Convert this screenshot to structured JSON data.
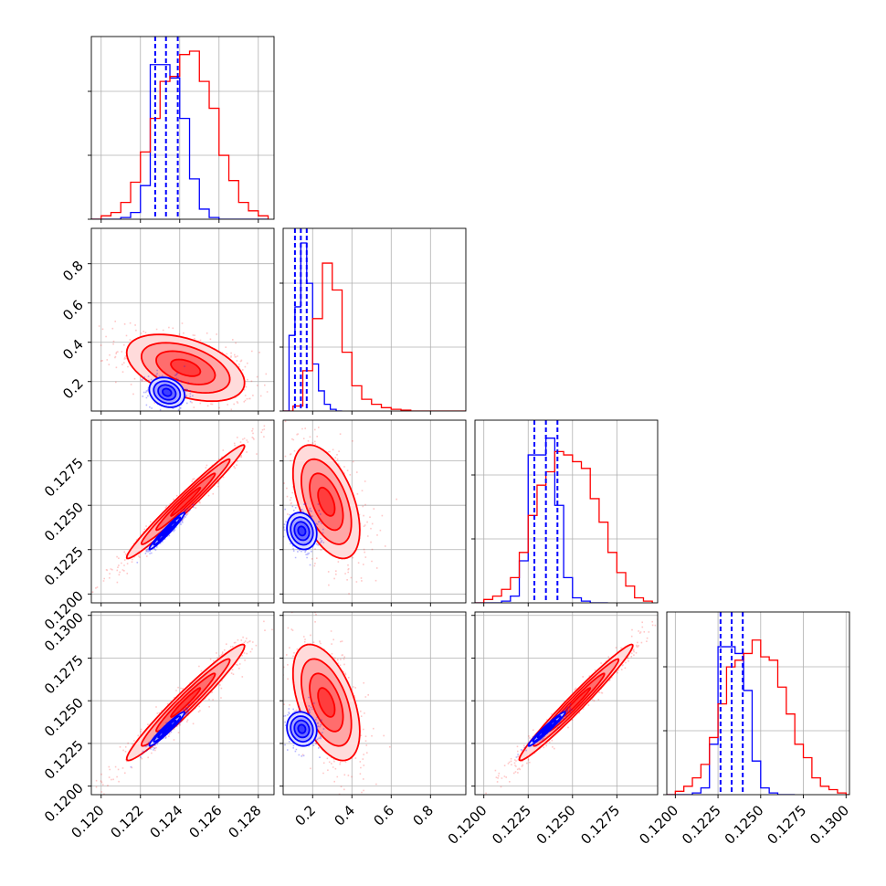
{
  "chart_data": {
    "type": "corner",
    "title": "",
    "grid": true,
    "series": [
      {
        "color": "#0000ff"
      },
      {
        "color": "#ff0000"
      }
    ],
    "parameters": [
      {
        "range": [
          0.1195,
          0.1288
        ],
        "ticks": [
          0.12,
          0.122,
          0.124,
          0.126,
          0.128
        ],
        "tick_labels": [
          "0.120",
          "0.122",
          "0.124",
          "0.126",
          "0.128"
        ]
      },
      {
        "range": [
          0.05,
          0.98
        ],
        "ticks": [
          0.2,
          0.4,
          0.6,
          0.8
        ],
        "tick_labels": [
          "0.2",
          "0.4",
          "0.6",
          "0.8"
        ]
      },
      {
        "range": [
          0.1195,
          0.1298
        ],
        "ticks": [
          0.12,
          0.1225,
          0.125,
          0.1275
        ],
        "tick_labels": [
          "0.1200",
          "0.1225",
          "0.1250",
          "0.1275"
        ]
      },
      {
        "range": [
          0.1195,
          0.1302
        ],
        "ticks": [
          0.12,
          0.1225,
          0.125,
          0.1275,
          0.13
        ],
        "tick_labels": [
          "0.1200",
          "0.1225",
          "0.1250",
          "0.1275",
          "0.1300"
        ]
      }
    ],
    "histograms": [
      {
        "blue": {
          "edges": [
            0.1195,
            0.12,
            0.1205,
            0.121,
            0.1215,
            0.122,
            0.1225,
            0.123,
            0.1235,
            0.124,
            0.1245,
            0.125,
            0.1255,
            0.126,
            0.1265,
            0.127,
            0.1275,
            0.128,
            0.1285
          ],
          "counts": [
            0,
            0,
            0,
            0.01,
            0.04,
            0.2,
            0.92,
            0.92,
            0.84,
            0.6,
            0.24,
            0.06,
            0.01,
            0,
            0,
            0,
            0,
            0
          ]
        },
        "red": {
          "edges": [
            0.1195,
            0.12,
            0.1205,
            0.121,
            0.1215,
            0.122,
            0.1225,
            0.123,
            0.1235,
            0.124,
            0.1245,
            0.125,
            0.1255,
            0.126,
            0.1265,
            0.127,
            0.1275,
            0.128,
            0.1285
          ],
          "counts": [
            0,
            0.02,
            0.04,
            0.1,
            0.22,
            0.4,
            0.6,
            0.82,
            0.85,
            0.98,
            1.0,
            0.82,
            0.66,
            0.38,
            0.23,
            0.1,
            0.05,
            0.02
          ]
        },
        "quantiles": [
          0.12275,
          0.1233,
          0.1239
        ]
      },
      {
        "blue": {
          "edges": [
            0.05,
            0.08,
            0.11,
            0.14,
            0.17,
            0.2,
            0.23,
            0.26,
            0.29,
            0.32,
            0.35
          ],
          "counts": [
            0,
            0.45,
            0.62,
            1.0,
            0.76,
            0.28,
            0.12,
            0.04,
            0.01,
            0
          ]
        },
        "red": {
          "edges": [
            0.05,
            0.1,
            0.15,
            0.2,
            0.25,
            0.3,
            0.35,
            0.4,
            0.45,
            0.5,
            0.55,
            0.6,
            0.65,
            0.7,
            0.75,
            0.8,
            0.85,
            0.9,
            0.95,
            0.98
          ],
          "counts": [
            0,
            0.03,
            0.24,
            0.55,
            0.88,
            0.72,
            0.35,
            0.15,
            0.07,
            0.04,
            0.02,
            0.01,
            0.005,
            0,
            0,
            0,
            0,
            0,
            0
          ]
        },
        "quantiles": [
          0.11,
          0.14,
          0.17
        ]
      },
      {
        "blue": {
          "edges": [
            0.1195,
            0.12,
            0.1205,
            0.121,
            0.1215,
            0.122,
            0.1225,
            0.123,
            0.1235,
            0.124,
            0.1245,
            0.125,
            0.1255,
            0.126,
            0.1265,
            0.127
          ],
          "counts": [
            0,
            0,
            0,
            0.01,
            0.04,
            0.25,
            0.88,
            0.88,
            0.98,
            0.58,
            0.15,
            0.03,
            0.01,
            0,
            0
          ]
        },
        "red": {
          "edges": [
            0.1195,
            0.12,
            0.1205,
            0.121,
            0.1215,
            0.122,
            0.1225,
            0.123,
            0.1235,
            0.124,
            0.1245,
            0.125,
            0.1255,
            0.126,
            0.1265,
            0.127,
            0.1275,
            0.128,
            0.1285,
            0.129,
            0.1295
          ],
          "counts": [
            0,
            0.02,
            0.04,
            0.08,
            0.15,
            0.3,
            0.52,
            0.7,
            0.78,
            0.9,
            0.88,
            0.84,
            0.8,
            0.62,
            0.48,
            0.3,
            0.18,
            0.1,
            0.03,
            0.01
          ]
        },
        "quantiles": [
          0.12285,
          0.1235,
          0.12415
        ]
      },
      {
        "blue": {
          "edges": [
            0.1195,
            0.12,
            0.1205,
            0.121,
            0.1215,
            0.122,
            0.1225,
            0.123,
            0.1235,
            0.124,
            0.1245,
            0.125,
            0.1255,
            0.126,
            0.1265,
            0.127
          ],
          "counts": [
            0,
            0,
            0,
            0.01,
            0.04,
            0.3,
            0.88,
            0.88,
            0.84,
            0.62,
            0.2,
            0.04,
            0.01,
            0,
            0
          ]
        },
        "red": {
          "edges": [
            0.1195,
            0.12,
            0.1205,
            0.121,
            0.1215,
            0.122,
            0.1225,
            0.123,
            0.1235,
            0.124,
            0.1245,
            0.125,
            0.1255,
            0.126,
            0.1265,
            0.127,
            0.1275,
            0.128,
            0.1285,
            0.129,
            0.1295,
            0.13,
            0.1302
          ],
          "counts": [
            0,
            0.02,
            0.05,
            0.1,
            0.18,
            0.34,
            0.54,
            0.76,
            0.8,
            0.84,
            0.92,
            0.82,
            0.8,
            0.64,
            0.48,
            0.3,
            0.22,
            0.1,
            0.05,
            0.03,
            0.01,
            0
          ]
        },
        "quantiles": [
          0.12265,
          0.1233,
          0.12395
        ]
      }
    ],
    "posteriors": {
      "blue": {
        "mean": [
          0.12335,
          0.145,
          0.12355,
          0.12335
        ],
        "std": [
          0.00045,
          0.038,
          0.00052,
          0.0005
        ],
        "corr": [
          [
            1,
            -0.2,
            0.97,
            0.96
          ],
          [
            -0.2,
            1,
            -0.15,
            -0.1
          ],
          [
            0.97,
            -0.15,
            1,
            0.97
          ],
          [
            0.96,
            -0.1,
            0.97,
            1
          ]
        ]
      },
      "red": {
        "mean": [
          0.1243,
          0.27,
          0.1252,
          0.1249
        ],
        "std": [
          0.0015,
          0.085,
          0.0016,
          0.0017
        ],
        "corr": [
          [
            1,
            -0.45,
            0.98,
            0.97
          ],
          [
            -0.45,
            1,
            -0.5,
            -0.5
          ],
          [
            0.98,
            -0.5,
            1,
            0.98
          ],
          [
            0.97,
            -0.5,
            0.98,
            1
          ]
        ]
      }
    },
    "contour_levels_sigma": [
      0.5,
      1.0,
      1.5,
      2.0
    ]
  }
}
